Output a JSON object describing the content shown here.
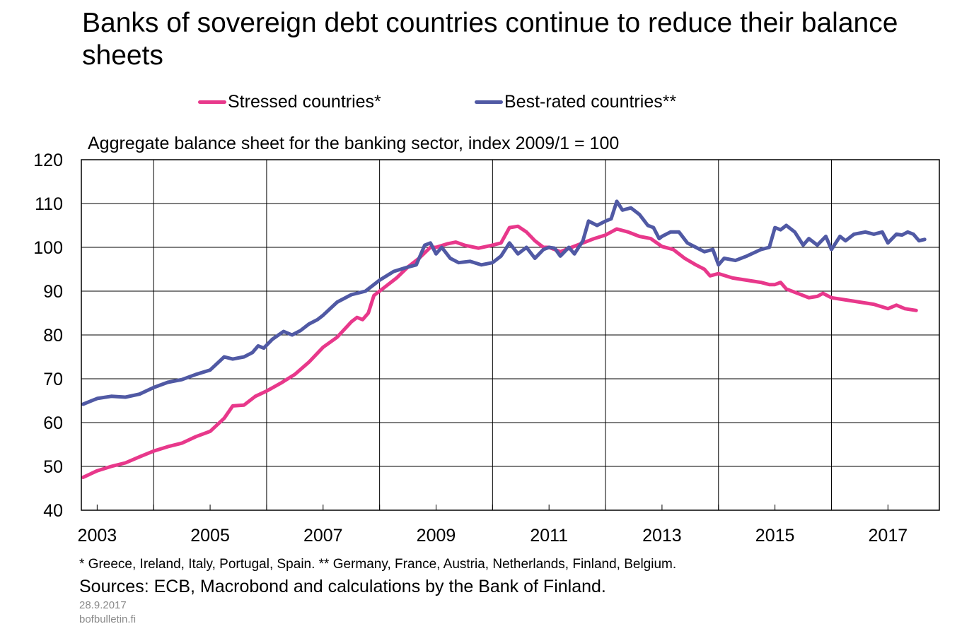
{
  "page": {
    "title": "Banks of sovereign debt countries continue to reduce their balance sheets",
    "subtitle": "Aggregate balance sheet for the banking sector, index 2009/1 = 100",
    "footnote": "* Greece, Ireland, Italy, Portugal, Spain. ** Germany, France, Austria, Netherlands, Finland, Belgium.",
    "sources": "Sources: ECB, Macrobond and calculations by the Bank of Finland.",
    "date": "28.9.2017",
    "site": "bofbulletin.fi"
  },
  "colors": {
    "stressed": "#e8388b",
    "best_rated": "#5059a4",
    "grid": "#000000"
  },
  "chart_data": {
    "type": "line",
    "title": "Banks of sovereign debt countries continue to reduce their balance sheets",
    "subtitle": "Aggregate balance sheet for the banking sector, index 2009/1 = 100",
    "xlabel": "",
    "ylabel": "",
    "xlim": [
      2002.72,
      2017.91
    ],
    "ylim": [
      40,
      120
    ],
    "yticks": [
      "40",
      "50",
      "60",
      "70",
      "80",
      "90",
      "100",
      "110",
      "120"
    ],
    "xtick_labels": [
      "2003",
      "2005",
      "2007",
      "2009",
      "2011",
      "2013",
      "2015",
      "2017"
    ],
    "grid": true,
    "legend_position": "top",
    "series": [
      {
        "name": "Stressed countries*",
        "color": "#e8388b",
        "points": [
          [
            2002.75,
            47.5
          ],
          [
            2003.0,
            49.0
          ],
          [
            2003.25,
            50.0
          ],
          [
            2003.5,
            50.8
          ],
          [
            2003.75,
            52.2
          ],
          [
            2004.0,
            53.5
          ],
          [
            2004.25,
            54.5
          ],
          [
            2004.5,
            55.3
          ],
          [
            2004.75,
            56.8
          ],
          [
            2005.0,
            58.0
          ],
          [
            2005.25,
            61.0
          ],
          [
            2005.4,
            63.8
          ],
          [
            2005.6,
            64.0
          ],
          [
            2005.8,
            66.0
          ],
          [
            2006.0,
            67.2
          ],
          [
            2006.25,
            69.0
          ],
          [
            2006.5,
            71.0
          ],
          [
            2006.75,
            73.8
          ],
          [
            2007.0,
            77.2
          ],
          [
            2007.25,
            79.5
          ],
          [
            2007.5,
            83.0
          ],
          [
            2007.6,
            84.0
          ],
          [
            2007.7,
            83.5
          ],
          [
            2007.8,
            85.0
          ],
          [
            2007.9,
            89.0
          ],
          [
            2008.1,
            91.0
          ],
          [
            2008.3,
            93.0
          ],
          [
            2008.5,
            95.5
          ],
          [
            2008.7,
            97.5
          ],
          [
            2008.9,
            100.0
          ],
          [
            2009.0,
            100.0
          ],
          [
            2009.2,
            100.8
          ],
          [
            2009.35,
            101.2
          ],
          [
            2009.5,
            100.5
          ],
          [
            2009.75,
            99.8
          ],
          [
            2010.0,
            100.5
          ],
          [
            2010.15,
            101.0
          ],
          [
            2010.3,
            104.5
          ],
          [
            2010.45,
            104.8
          ],
          [
            2010.6,
            103.5
          ],
          [
            2010.75,
            101.5
          ],
          [
            2010.9,
            100.0
          ],
          [
            2011.0,
            100.0
          ],
          [
            2011.2,
            99.0
          ],
          [
            2011.4,
            100.0
          ],
          [
            2011.6,
            101.0
          ],
          [
            2011.8,
            102.0
          ],
          [
            2012.0,
            102.8
          ],
          [
            2012.1,
            103.5
          ],
          [
            2012.2,
            104.2
          ],
          [
            2012.4,
            103.5
          ],
          [
            2012.6,
            102.5
          ],
          [
            2012.8,
            102.0
          ],
          [
            2013.0,
            100.2
          ],
          [
            2013.2,
            99.5
          ],
          [
            2013.4,
            97.5
          ],
          [
            2013.6,
            96.0
          ],
          [
            2013.75,
            95.0
          ],
          [
            2013.85,
            93.5
          ],
          [
            2014.0,
            94.0
          ],
          [
            2014.25,
            93.0
          ],
          [
            2014.5,
            92.5
          ],
          [
            2014.75,
            92.0
          ],
          [
            2014.9,
            91.5
          ],
          [
            2015.0,
            91.5
          ],
          [
            2015.1,
            92.0
          ],
          [
            2015.2,
            90.5
          ],
          [
            2015.4,
            89.5
          ],
          [
            2015.6,
            88.5
          ],
          [
            2015.75,
            88.8
          ],
          [
            2015.85,
            89.5
          ],
          [
            2016.0,
            88.5
          ],
          [
            2016.25,
            88.0
          ],
          [
            2016.5,
            87.5
          ],
          [
            2016.75,
            87.0
          ],
          [
            2017.0,
            86.0
          ],
          [
            2017.15,
            86.8
          ],
          [
            2017.3,
            86.0
          ],
          [
            2017.5,
            85.6
          ]
        ]
      },
      {
        "name": "Best-rated countries**",
        "color": "#5059a4",
        "points": [
          [
            2002.75,
            64.2
          ],
          [
            2003.0,
            65.5
          ],
          [
            2003.25,
            66.0
          ],
          [
            2003.5,
            65.8
          ],
          [
            2003.75,
            66.5
          ],
          [
            2004.0,
            68.0
          ],
          [
            2004.25,
            69.2
          ],
          [
            2004.5,
            69.8
          ],
          [
            2004.75,
            71.0
          ],
          [
            2005.0,
            72.0
          ],
          [
            2005.25,
            75.0
          ],
          [
            2005.4,
            74.5
          ],
          [
            2005.6,
            75.0
          ],
          [
            2005.75,
            76.0
          ],
          [
            2005.85,
            77.5
          ],
          [
            2005.95,
            77.0
          ],
          [
            2006.1,
            79.0
          ],
          [
            2006.3,
            80.8
          ],
          [
            2006.45,
            80.0
          ],
          [
            2006.6,
            81.0
          ],
          [
            2006.75,
            82.5
          ],
          [
            2006.9,
            83.5
          ],
          [
            2007.0,
            84.5
          ],
          [
            2007.25,
            87.5
          ],
          [
            2007.5,
            89.2
          ],
          [
            2007.75,
            90.0
          ],
          [
            2008.0,
            92.5
          ],
          [
            2008.25,
            94.5
          ],
          [
            2008.5,
            95.5
          ],
          [
            2008.65,
            96.0
          ],
          [
            2008.8,
            100.5
          ],
          [
            2008.9,
            101.0
          ],
          [
            2009.0,
            98.5
          ],
          [
            2009.1,
            100.0
          ],
          [
            2009.25,
            97.5
          ],
          [
            2009.4,
            96.5
          ],
          [
            2009.6,
            96.8
          ],
          [
            2009.8,
            96.0
          ],
          [
            2010.0,
            96.5
          ],
          [
            2010.15,
            98.0
          ],
          [
            2010.3,
            101.0
          ],
          [
            2010.45,
            98.5
          ],
          [
            2010.6,
            100.0
          ],
          [
            2010.75,
            97.5
          ],
          [
            2010.9,
            99.5
          ],
          [
            2011.0,
            100.0
          ],
          [
            2011.1,
            99.8
          ],
          [
            2011.2,
            98.0
          ],
          [
            2011.35,
            100.0
          ],
          [
            2011.45,
            98.5
          ],
          [
            2011.6,
            101.5
          ],
          [
            2011.7,
            106.0
          ],
          [
            2011.85,
            105.0
          ],
          [
            2012.0,
            106.0
          ],
          [
            2012.1,
            106.5
          ],
          [
            2012.2,
            110.5
          ],
          [
            2012.3,
            108.5
          ],
          [
            2012.45,
            109.0
          ],
          [
            2012.6,
            107.5
          ],
          [
            2012.75,
            105.0
          ],
          [
            2012.85,
            104.5
          ],
          [
            2012.95,
            102.0
          ],
          [
            2013.0,
            102.5
          ],
          [
            2013.15,
            103.5
          ],
          [
            2013.3,
            103.5
          ],
          [
            2013.45,
            101.0
          ],
          [
            2013.6,
            100.0
          ],
          [
            2013.75,
            99.0
          ],
          [
            2013.9,
            99.5
          ],
          [
            2014.0,
            96.0
          ],
          [
            2014.1,
            97.5
          ],
          [
            2014.3,
            97.0
          ],
          [
            2014.5,
            98.0
          ],
          [
            2014.75,
            99.5
          ],
          [
            2014.9,
            100.0
          ],
          [
            2015.0,
            104.5
          ],
          [
            2015.1,
            104.0
          ],
          [
            2015.2,
            105.0
          ],
          [
            2015.35,
            103.5
          ],
          [
            2015.5,
            100.5
          ],
          [
            2015.6,
            102.0
          ],
          [
            2015.75,
            100.5
          ],
          [
            2015.9,
            102.5
          ],
          [
            2016.0,
            99.5
          ],
          [
            2016.15,
            102.5
          ],
          [
            2016.25,
            101.5
          ],
          [
            2016.4,
            103.0
          ],
          [
            2016.6,
            103.5
          ],
          [
            2016.75,
            103.0
          ],
          [
            2016.9,
            103.5
          ],
          [
            2017.0,
            101.0
          ],
          [
            2017.15,
            103.0
          ],
          [
            2017.25,
            102.8
          ],
          [
            2017.35,
            103.5
          ],
          [
            2017.45,
            103.0
          ],
          [
            2017.55,
            101.5
          ],
          [
            2017.65,
            101.8
          ]
        ]
      }
    ]
  }
}
